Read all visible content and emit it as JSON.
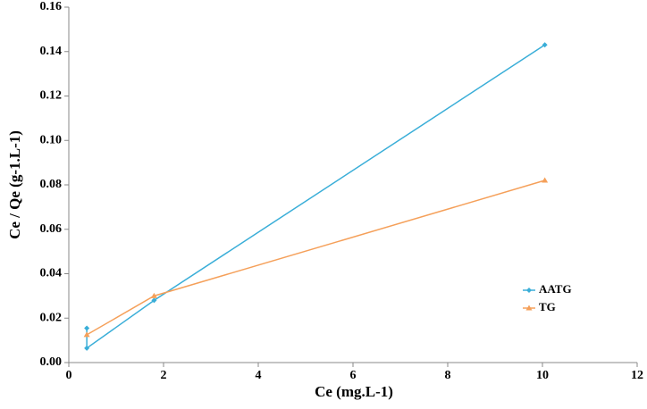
{
  "chart_data": {
    "type": "line",
    "xlabel": "Ce (mg.L-1)",
    "ylabel": "Ce / Qe (g-1.L-1)",
    "xlim": [
      0,
      12
    ],
    "xticks": [
      0,
      2,
      4,
      6,
      8,
      10,
      12
    ],
    "ylim": [
      0,
      0.16
    ],
    "yticks": [
      {
        "value": 0,
        "label": "0.00"
      },
      0.02,
      0.04,
      0.06,
      0.08,
      {
        "value": 0.1,
        "label": "0.10"
      },
      0.12,
      0.14,
      0.16
    ],
    "legend": "right",
    "series": [
      {
        "name": "AATG",
        "color": "#3aaed8",
        "marker": "diamond",
        "x": [
          0.38,
          0.38,
          1.8,
          10.05
        ],
        "values": [
          0.0155,
          0.0065,
          0.028,
          0.143
        ]
      },
      {
        "name": "TG",
        "color": "#f5a05a",
        "marker": "triangle",
        "x": [
          0.38,
          1.8,
          10.05
        ],
        "values": [
          0.0125,
          0.03,
          0.082
        ]
      }
    ]
  }
}
